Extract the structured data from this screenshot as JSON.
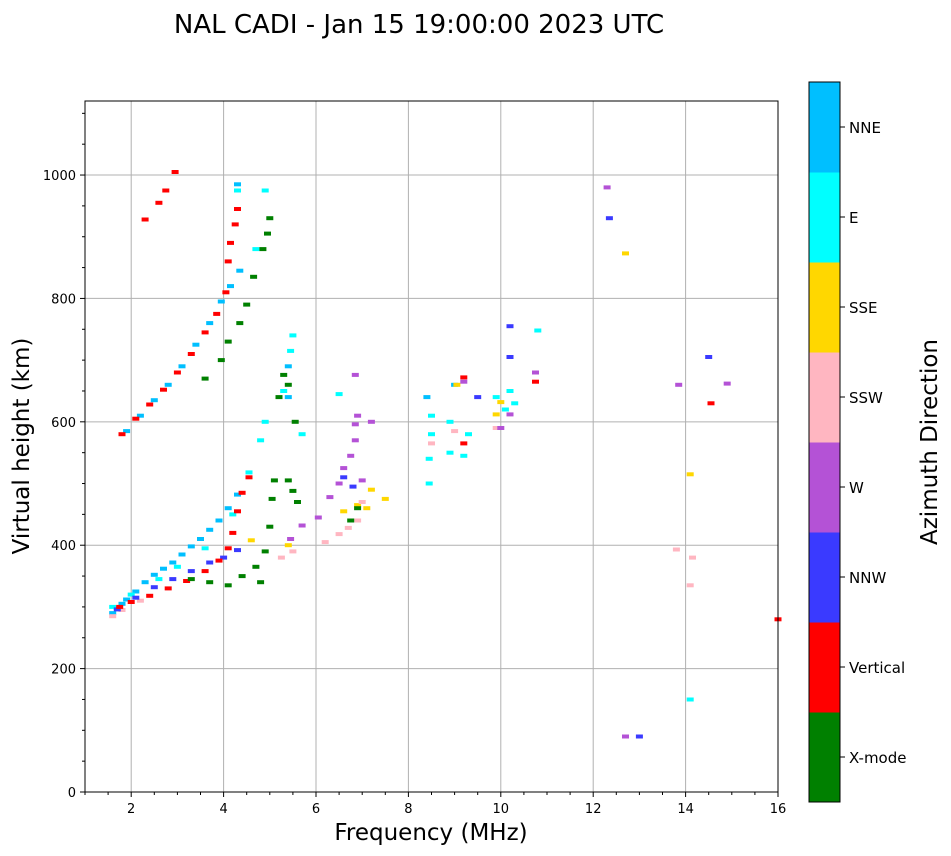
{
  "chart_data": {
    "type": "scatter",
    "title": "NAL CADI - Jan 15 19:00:00 2023 UTC",
    "xlabel": "Frequency (MHz)",
    "ylabel": "Virtual height (km)",
    "xlim": [
      1,
      16
    ],
    "ylim": [
      0,
      1120
    ],
    "xticks": [
      2,
      4,
      6,
      8,
      10,
      12,
      14,
      16
    ],
    "yticks": [
      0,
      200,
      400,
      600,
      800,
      1000
    ],
    "grid": true,
    "colorbar": {
      "label": "Azimuth Direction",
      "categories": [
        {
          "name": "X-mode",
          "color": "#008000"
        },
        {
          "name": "Vertical",
          "color": "#ff0000"
        },
        {
          "name": "NNW",
          "color": "#3a3aff"
        },
        {
          "name": "W",
          "color": "#b452d6"
        },
        {
          "name": "SSW",
          "color": "#ffb6c1"
        },
        {
          "name": "SSE",
          "color": "#ffd700"
        },
        {
          "name": "E",
          "color": "#00ffff"
        },
        {
          "name": "NNE",
          "color": "#00bfff"
        }
      ]
    },
    "series": [
      {
        "name": "NNE",
        "points": [
          [
            1.6,
            290
          ],
          [
            1.7,
            298
          ],
          [
            1.8,
            305
          ],
          [
            1.9,
            312
          ],
          [
            2.1,
            325
          ],
          [
            2.3,
            340
          ],
          [
            2.5,
            352
          ],
          [
            2.7,
            362
          ],
          [
            2.9,
            372
          ],
          [
            3.1,
            385
          ],
          [
            3.3,
            398
          ],
          [
            3.5,
            410
          ],
          [
            3.7,
            425
          ],
          [
            3.9,
            440
          ],
          [
            4.1,
            460
          ],
          [
            4.3,
            482
          ],
          [
            1.9,
            585
          ],
          [
            2.2,
            610
          ],
          [
            2.5,
            635
          ],
          [
            2.8,
            660
          ],
          [
            3.1,
            690
          ],
          [
            3.4,
            725
          ],
          [
            3.7,
            760
          ],
          [
            3.95,
            795
          ],
          [
            4.15,
            820
          ],
          [
            4.35,
            845
          ],
          [
            4.3,
            985
          ],
          [
            5.4,
            690
          ],
          [
            5.4,
            640
          ],
          [
            8.4,
            640
          ],
          [
            9.0,
            660
          ]
        ]
      },
      {
        "name": "E",
        "points": [
          [
            1.6,
            300
          ],
          [
            2.0,
            320
          ],
          [
            2.6,
            345
          ],
          [
            3.0,
            365
          ],
          [
            3.6,
            395
          ],
          [
            4.2,
            450
          ],
          [
            4.55,
            518
          ],
          [
            4.8,
            570
          ],
          [
            4.9,
            600
          ],
          [
            5.3,
            650
          ],
          [
            5.5,
            740
          ],
          [
            5.7,
            580
          ],
          [
            6.5,
            645
          ],
          [
            4.3,
            975
          ],
          [
            4.9,
            975
          ],
          [
            8.45,
            500
          ],
          [
            8.45,
            540
          ],
          [
            8.5,
            580
          ],
          [
            8.5,
            610
          ],
          [
            8.9,
            550
          ],
          [
            8.9,
            600
          ],
          [
            9.2,
            545
          ],
          [
            9.3,
            580
          ],
          [
            9.9,
            640
          ],
          [
            10.1,
            620
          ],
          [
            10.2,
            650
          ],
          [
            10.3,
            630
          ],
          [
            14.1,
            150
          ],
          [
            10.8,
            748
          ],
          [
            4.7,
            880
          ],
          [
            5.45,
            715
          ]
        ]
      },
      {
        "name": "SSE",
        "points": [
          [
            7.1,
            460
          ],
          [
            7.2,
            490
          ],
          [
            7.5,
            475
          ],
          [
            6.9,
            465
          ],
          [
            6.6,
            455
          ],
          [
            9.05,
            660
          ],
          [
            9.9,
            612
          ],
          [
            10.0,
            632
          ],
          [
            12.7,
            873
          ],
          [
            14.1,
            515
          ],
          [
            5.4,
            400
          ],
          [
            4.6,
            408
          ]
        ]
      },
      {
        "name": "SSW",
        "points": [
          [
            1.6,
            285
          ],
          [
            1.8,
            295
          ],
          [
            2.2,
            310
          ],
          [
            6.2,
            405
          ],
          [
            6.5,
            418
          ],
          [
            6.7,
            428
          ],
          [
            6.9,
            440
          ],
          [
            7.0,
            470
          ],
          [
            5.5,
            390
          ],
          [
            5.25,
            380
          ],
          [
            13.8,
            393
          ],
          [
            14.15,
            380
          ],
          [
            14.1,
            335
          ],
          [
            9.0,
            585
          ],
          [
            9.9,
            590
          ],
          [
            8.5,
            565
          ]
        ]
      },
      {
        "name": "W",
        "points": [
          [
            6.05,
            445
          ],
          [
            6.3,
            478
          ],
          [
            6.5,
            500
          ],
          [
            6.6,
            525
          ],
          [
            6.75,
            545
          ],
          [
            6.85,
            570
          ],
          [
            6.85,
            596
          ],
          [
            6.9,
            610
          ],
          [
            6.85,
            676
          ],
          [
            7.2,
            600
          ],
          [
            7.0,
            505
          ],
          [
            5.7,
            432
          ],
          [
            5.45,
            410
          ],
          [
            9.2,
            665
          ],
          [
            10.0,
            590
          ],
          [
            10.2,
            612
          ],
          [
            10.75,
            680
          ],
          [
            12.3,
            980
          ],
          [
            13.85,
            660
          ],
          [
            14.9,
            662
          ],
          [
            12.7,
            90
          ]
        ]
      },
      {
        "name": "NNW",
        "points": [
          [
            1.7,
            296
          ],
          [
            2.1,
            315
          ],
          [
            2.5,
            332
          ],
          [
            2.9,
            345
          ],
          [
            3.3,
            358
          ],
          [
            3.7,
            372
          ],
          [
            4.0,
            380
          ],
          [
            4.3,
            392
          ],
          [
            6.6,
            510
          ],
          [
            6.8,
            495
          ],
          [
            10.2,
            755
          ],
          [
            10.2,
            705
          ],
          [
            12.35,
            930
          ],
          [
            13.0,
            90
          ],
          [
            14.5,
            705
          ],
          [
            9.5,
            640
          ]
        ]
      },
      {
        "name": "Vertical",
        "points": [
          [
            1.75,
            300
          ],
          [
            2.0,
            308
          ],
          [
            2.4,
            318
          ],
          [
            2.8,
            330
          ],
          [
            3.2,
            342
          ],
          [
            3.6,
            358
          ],
          [
            3.9,
            375
          ],
          [
            4.1,
            395
          ],
          [
            4.2,
            420
          ],
          [
            4.3,
            455
          ],
          [
            4.4,
            485
          ],
          [
            4.55,
            510
          ],
          [
            1.8,
            580
          ],
          [
            2.1,
            605
          ],
          [
            2.4,
            628
          ],
          [
            2.7,
            652
          ],
          [
            3.0,
            680
          ],
          [
            3.3,
            710
          ],
          [
            3.6,
            745
          ],
          [
            3.85,
            775
          ],
          [
            4.05,
            810
          ],
          [
            4.1,
            860
          ],
          [
            4.15,
            890
          ],
          [
            4.25,
            920
          ],
          [
            4.3,
            945
          ],
          [
            2.95,
            1005
          ],
          [
            2.75,
            975
          ],
          [
            2.6,
            955
          ],
          [
            2.3,
            928
          ],
          [
            9.2,
            565
          ],
          [
            9.2,
            672
          ],
          [
            14.55,
            630
          ],
          [
            16.0,
            280
          ],
          [
            10.75,
            665
          ]
        ]
      },
      {
        "name": "X-mode",
        "points": [
          [
            3.3,
            345
          ],
          [
            3.7,
            340
          ],
          [
            4.1,
            335
          ],
          [
            4.4,
            350
          ],
          [
            4.7,
            365
          ],
          [
            4.9,
            390
          ],
          [
            5.0,
            430
          ],
          [
            5.05,
            475
          ],
          [
            5.1,
            505
          ],
          [
            5.4,
            505
          ],
          [
            5.5,
            488
          ],
          [
            5.6,
            470
          ],
          [
            5.55,
            600
          ],
          [
            5.4,
            660
          ],
          [
            5.2,
            640
          ],
          [
            5.3,
            676
          ],
          [
            3.6,
            670
          ],
          [
            3.95,
            700
          ],
          [
            4.1,
            730
          ],
          [
            4.35,
            760
          ],
          [
            4.5,
            790
          ],
          [
            4.65,
            835
          ],
          [
            4.85,
            880
          ],
          [
            4.95,
            905
          ],
          [
            5.0,
            930
          ],
          [
            6.9,
            460
          ],
          [
            6.75,
            440
          ],
          [
            4.8,
            340
          ]
        ]
      }
    ]
  }
}
